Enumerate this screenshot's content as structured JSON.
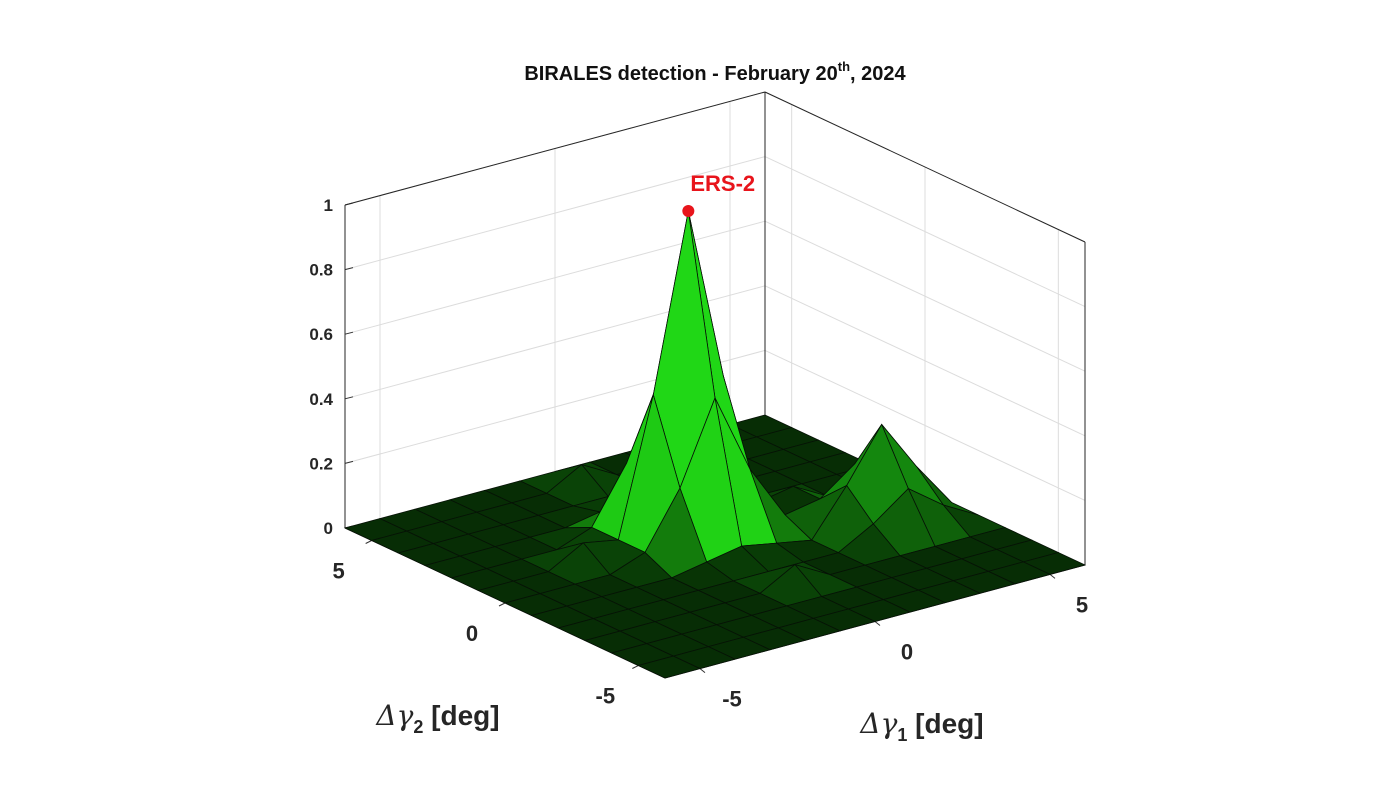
{
  "chart_data": {
    "type": "surface",
    "title": [
      "BIRALES detection - February 20",
      "th",
      ", 2024"
    ],
    "xlabel": [
      "Δγ",
      "1",
      " [deg]"
    ],
    "ylabel": [
      "Δγ",
      "2",
      " [deg]"
    ],
    "x": [
      -6,
      -5,
      -4,
      -3,
      -2,
      -1,
      0,
      1,
      2,
      3,
      4,
      5,
      6
    ],
    "y": [
      -6,
      -5,
      -4,
      -3,
      -2,
      -1,
      0,
      1,
      2,
      3,
      4,
      5,
      6
    ],
    "z": [
      [
        0,
        0,
        0,
        0,
        0,
        0,
        0,
        0,
        0,
        0,
        0,
        0,
        0
      ],
      [
        0,
        0,
        0,
        0,
        0,
        0,
        0,
        0,
        0,
        0,
        0,
        0,
        0
      ],
      [
        0,
        0,
        0,
        0,
        0,
        0,
        0,
        0,
        0,
        0,
        0,
        0,
        0
      ],
      [
        0,
        0,
        0,
        0,
        0,
        0,
        0.06,
        0,
        0,
        0,
        0,
        0,
        0
      ],
      [
        0,
        0,
        0,
        0,
        0,
        0,
        0,
        0,
        0,
        0.06,
        0.14,
        0.06,
        0
      ],
      [
        0,
        0,
        0,
        0,
        0,
        0.02,
        0.04,
        0.02,
        0,
        0.14,
        0.3,
        0.14,
        0
      ],
      [
        0,
        0,
        0,
        0,
        0.04,
        0.21,
        0.46,
        0.21,
        0.04,
        0.06,
        0.14,
        0.06,
        0
      ],
      [
        0,
        0,
        0,
        0.06,
        0.04,
        0.46,
        1,
        0.46,
        0.04,
        0.06,
        0,
        0,
        0
      ],
      [
        0,
        0,
        0,
        0,
        0.04,
        0.21,
        0.46,
        0.21,
        0.04,
        0,
        0,
        0,
        0
      ],
      [
        0,
        0,
        0,
        0,
        0,
        0.02,
        0.04,
        0.02,
        0,
        0,
        0,
        0,
        0
      ],
      [
        0,
        0,
        0,
        0,
        0,
        0,
        0,
        0,
        0,
        0,
        0,
        0,
        0
      ],
      [
        0,
        0,
        0,
        0,
        0,
        0,
        0.06,
        0,
        0,
        0,
        0,
        0,
        0
      ],
      [
        0,
        0,
        0,
        0,
        0,
        0,
        0,
        0,
        0,
        0,
        0,
        0,
        0
      ]
    ],
    "xlim": [
      -6,
      6
    ],
    "ylim": [
      -6,
      6
    ],
    "zlim": [
      0,
      1
    ],
    "xticks": [
      -5,
      0,
      5
    ],
    "yticks": [
      -5,
      0,
      5
    ],
    "zticks": [
      0,
      0.2,
      0.4,
      0.6,
      0.8,
      1
    ],
    "grid": true,
    "annotation": {
      "text": "ERS-2",
      "x": 0,
      "y": 1,
      "z": 1,
      "color": "#e8141b"
    }
  }
}
